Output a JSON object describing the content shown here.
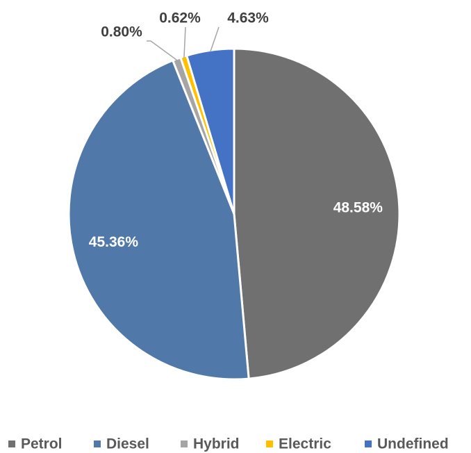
{
  "chart_data": {
    "type": "pie",
    "categories": [
      "Petrol",
      "Diesel",
      "Hybrid",
      "Electric",
      "Undefined"
    ],
    "values": [
      48.58,
      45.36,
      0.8,
      0.62,
      4.63
    ],
    "value_labels": [
      "48.58%",
      "45.36%",
      "0.80%",
      "0.62%",
      "4.63%"
    ],
    "colors": [
      "#707070",
      "#5078a8",
      "#a5a5a5",
      "#ffc000",
      "#4472c4"
    ],
    "legend": "bottom"
  }
}
